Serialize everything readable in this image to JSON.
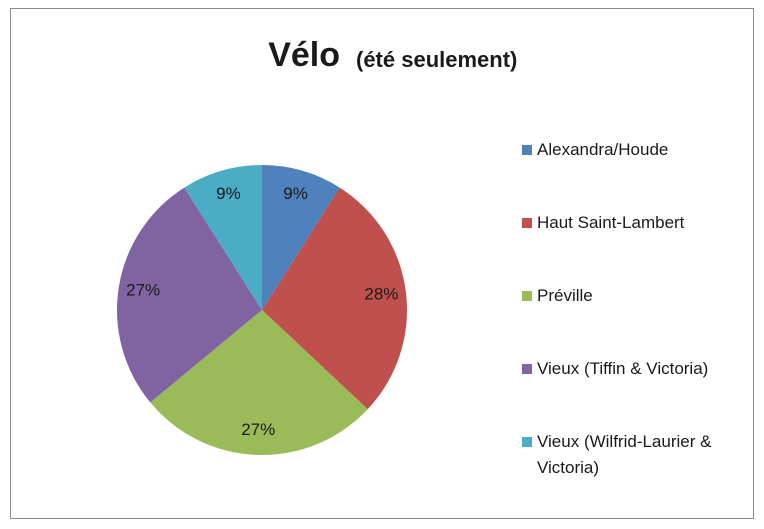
{
  "chart_data": {
    "type": "pie",
    "title": "Vélo",
    "subtitle": "(été seulement)",
    "categories": [
      "Alexandra/Houde",
      "Haut Saint-Lambert",
      "Préville",
      "Vieux (Tiffin & Victoria)",
      "Vieux (Wilfrid-Laurier & Victoria)"
    ],
    "values": [
      9,
      28,
      27,
      27,
      9
    ],
    "value_labels": [
      "9%",
      "28%",
      "27%",
      "27%",
      "9%"
    ],
    "colors": [
      "#4f81bd",
      "#c0504d",
      "#9bbb59",
      "#8064a2",
      "#4bacc6"
    ],
    "legend": "right"
  }
}
